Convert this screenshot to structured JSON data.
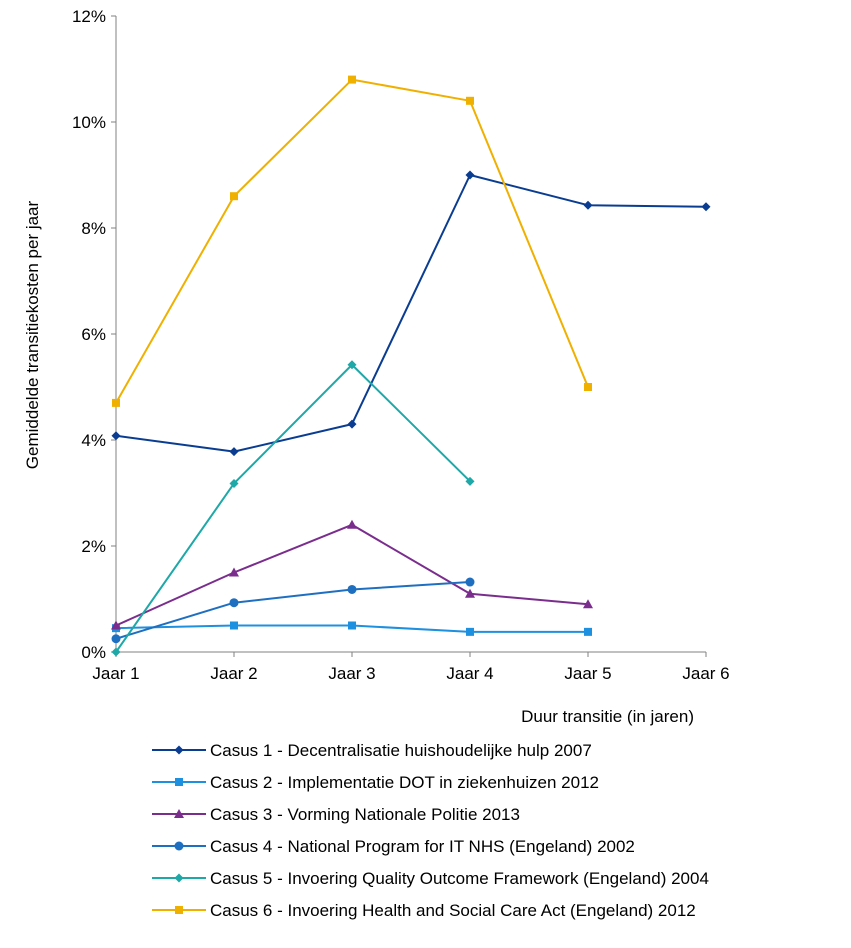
{
  "chart_data": {
    "type": "line",
    "title": "",
    "xlabel": "Duur transitie (in jaren)",
    "ylabel": "Gemiddelde transitiekosten per jaar",
    "categories": [
      "Jaar 1",
      "Jaar 2",
      "Jaar 3",
      "Jaar 4",
      "Jaar 5",
      "Jaar 6"
    ],
    "ylim": [
      0,
      12
    ],
    "yticks": [
      0,
      2,
      4,
      6,
      8,
      10,
      12
    ],
    "ytick_labels": [
      "0%",
      "2%",
      "4%",
      "6%",
      "8%",
      "10%",
      "12%"
    ],
    "grid": false,
    "legend_position": "bottom",
    "series": [
      {
        "name": "Casus 1 - Decentralisatie huishoudelijke hulp 2007",
        "color": "#0a3d91",
        "marker": "diamond",
        "values": [
          4.08,
          3.78,
          4.3,
          9.0,
          8.43,
          8.4
        ]
      },
      {
        "name": "Casus 2 - Implementatie DOT in ziekenhuizen 2012",
        "color": "#1e90e0",
        "marker": "square",
        "values": [
          0.45,
          0.5,
          0.5,
          0.38,
          0.38,
          null
        ]
      },
      {
        "name": "Casus 3 - Vorming Nationale Politie 2013",
        "color": "#7b2d8e",
        "marker": "triangle",
        "values": [
          0.5,
          1.5,
          2.4,
          1.1,
          0.9,
          null
        ]
      },
      {
        "name": "Casus 4 - National Program for IT NHS (Engeland) 2002",
        "color": "#1f6fc0",
        "marker": "circle",
        "values": [
          0.25,
          0.93,
          1.18,
          1.32,
          null,
          null
        ]
      },
      {
        "name": "Casus 5 - Invoering Quality Outcome Framework (Engeland) 2004",
        "color": "#1ea8a8",
        "marker": "diamond",
        "values": [
          0.0,
          3.18,
          5.42,
          3.22,
          null,
          null
        ]
      },
      {
        "name": "Casus 6 - Invoering Health and Social Care Act (Engeland) 2012",
        "color": "#f0b000",
        "marker": "square",
        "values": [
          4.7,
          8.6,
          10.8,
          10.4,
          5.0,
          null
        ]
      }
    ]
  }
}
